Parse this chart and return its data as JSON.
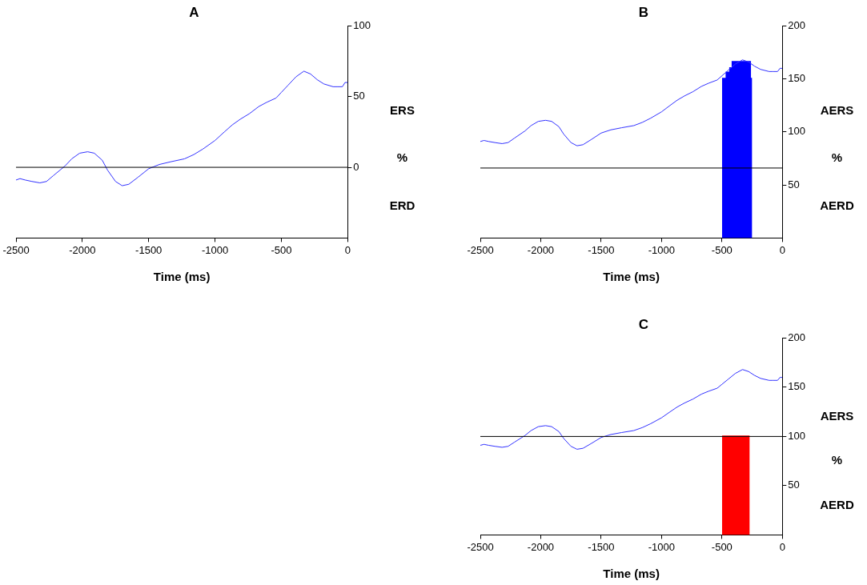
{
  "chart_data": [
    {
      "type": "line",
      "title": "A",
      "xlabel": "Time (ms)",
      "annotations": [
        "ERS",
        "%",
        "ERD"
      ],
      "xlim": [
        -2500,
        0
      ],
      "ylim": [
        -50,
        100
      ],
      "xticks": [
        -2500,
        -2000,
        -1500,
        -1000,
        -500,
        0
      ],
      "yticks": [
        0,
        50,
        100
      ],
      "grid": false,
      "legend": false,
      "ref_lines": [
        {
          "axis": "y",
          "value": 0,
          "color": "#000000"
        }
      ],
      "series": [
        {
          "type": "line",
          "color": "#3333ff",
          "x": [
            -2500,
            -2470,
            -2430,
            -2380,
            -2320,
            -2270,
            -2220,
            -2130,
            -2080,
            -2020,
            -1960,
            -1910,
            -1850,
            -1810,
            -1750,
            -1700,
            -1650,
            -1580,
            -1500,
            -1420,
            -1330,
            -1230,
            -1160,
            -1090,
            -1000,
            -930,
            -870,
            -810,
            -740,
            -670,
            -610,
            -540,
            -500,
            -450,
            -390,
            -330,
            -280,
            -230,
            -180,
            -110,
            -80,
            -40,
            -20,
            0
          ],
          "values": [
            -9,
            -8,
            -9,
            -10,
            -11,
            -10,
            -6,
            1,
            6,
            10,
            11,
            10,
            5,
            -2,
            -10,
            -13,
            -12,
            -7,
            -1,
            2,
            4,
            6,
            9,
            13,
            19,
            25,
            30,
            34,
            38,
            43,
            46,
            49,
            53,
            58,
            64,
            68,
            66,
            62,
            59,
            57,
            57,
            57,
            60,
            60
          ]
        }
      ]
    },
    {
      "type": "line",
      "title": "B",
      "xlabel": "Time (ms)",
      "annotations": [
        "AERS",
        "%",
        "AERD"
      ],
      "xlim": [
        -2500,
        0
      ],
      "ylim": [
        0,
        200
      ],
      "xticks": [
        -2500,
        -2000,
        -1500,
        -1000,
        -500,
        0
      ],
      "yticks": [
        50,
        100,
        150,
        200
      ],
      "grid": false,
      "legend": false,
      "ref_lines": [
        {
          "axis": "y",
          "value": 66,
          "color": "#000000"
        }
      ],
      "series": [
        {
          "type": "line",
          "color": "#3333ff",
          "x": [
            -2500,
            -2470,
            -2430,
            -2380,
            -2320,
            -2270,
            -2220,
            -2130,
            -2080,
            -2020,
            -1960,
            -1910,
            -1850,
            -1810,
            -1750,
            -1700,
            -1650,
            -1580,
            -1500,
            -1420,
            -1330,
            -1230,
            -1160,
            -1090,
            -1000,
            -930,
            -870,
            -810,
            -740,
            -670,
            -610,
            -540,
            -500,
            -450,
            -390,
            -330,
            -280,
            -230,
            -180,
            -110,
            -80,
            -40,
            -20,
            0
          ],
          "values": [
            91,
            92,
            91,
            90,
            89,
            90,
            94,
            101,
            106,
            110,
            111,
            110,
            105,
            98,
            90,
            87,
            88,
            93,
            99,
            102,
            104,
            106,
            109,
            113,
            119,
            125,
            130,
            134,
            138,
            143,
            146,
            149,
            153,
            158,
            164,
            168,
            166,
            162,
            159,
            157,
            157,
            157,
            160,
            160
          ]
        },
        {
          "type": "area",
          "color": "#0000ff",
          "x": [
            -500,
            -470,
            -470,
            -440,
            -440,
            -420,
            -420,
            -260,
            -260,
            -250
          ],
          "values": [
            151,
            151,
            157,
            157,
            161,
            161,
            167,
            167,
            151,
            151
          ]
        }
      ]
    },
    {
      "type": "line",
      "title": "C",
      "xlabel": "Time (ms)",
      "annotations": [
        "AERS",
        "%",
        "AERD"
      ],
      "xlim": [
        -2500,
        0
      ],
      "ylim": [
        0,
        200
      ],
      "xticks": [
        -2500,
        -2000,
        -1500,
        -1000,
        -500,
        0
      ],
      "yticks": [
        50,
        100,
        150,
        200
      ],
      "grid": false,
      "legend": false,
      "ref_lines": [
        {
          "axis": "y",
          "value": 100,
          "color": "#000000"
        }
      ],
      "series": [
        {
          "type": "line",
          "color": "#3333ff",
          "x": [
            -2500,
            -2470,
            -2430,
            -2380,
            -2320,
            -2270,
            -2220,
            -2130,
            -2080,
            -2020,
            -1960,
            -1910,
            -1850,
            -1810,
            -1750,
            -1700,
            -1650,
            -1580,
            -1500,
            -1420,
            -1330,
            -1230,
            -1160,
            -1090,
            -1000,
            -930,
            -870,
            -810,
            -740,
            -670,
            -610,
            -540,
            -500,
            -450,
            -390,
            -330,
            -280,
            -230,
            -180,
            -110,
            -80,
            -40,
            -20,
            0
          ],
          "values": [
            91,
            92,
            91,
            90,
            89,
            90,
            94,
            101,
            106,
            110,
            111,
            110,
            105,
            98,
            90,
            87,
            88,
            93,
            99,
            102,
            104,
            106,
            109,
            113,
            119,
            125,
            130,
            134,
            138,
            143,
            146,
            149,
            153,
            158,
            164,
            168,
            166,
            162,
            159,
            157,
            157,
            157,
            160,
            160
          ]
        },
        {
          "type": "area",
          "color": "#ff0000",
          "x": [
            -500,
            -270
          ],
          "values": [
            101,
            101
          ]
        }
      ]
    }
  ]
}
